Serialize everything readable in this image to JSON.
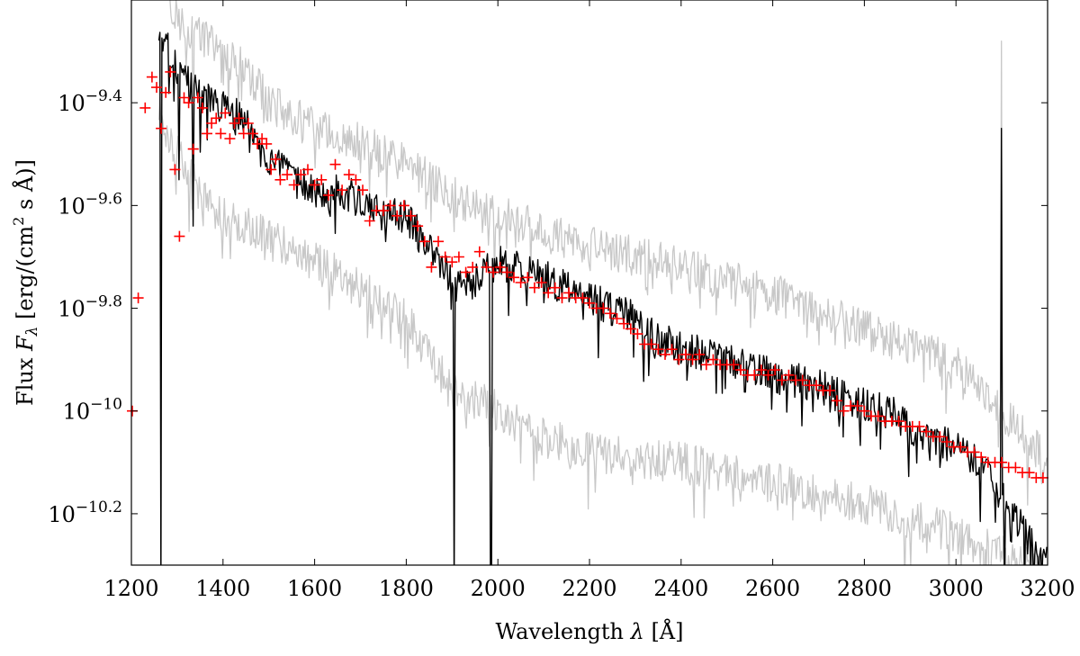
{
  "chart_data": {
    "type": "line",
    "title": "",
    "xlabel": "Wavelength λ [Å]",
    "ylabel": "Flux F_λ [erg/(cm² s Å)]",
    "xlabel_parts": {
      "main": "Wavelength ",
      "symbol": "λ",
      "unit": " [Å]"
    },
    "ylabel_parts": {
      "main": "Flux ",
      "symbol": "F",
      "sub": "λ",
      "unit_a": " [erg/(cm",
      "sup": "2",
      "unit_b": " s Å)]"
    },
    "xlim": [
      1200,
      3200
    ],
    "ylim_log10": [
      -10.3,
      -9.2
    ],
    "y_scale": "log",
    "grid": false,
    "x_ticks": [
      {
        "value": 1200,
        "label": "1200"
      },
      {
        "value": 1400,
        "label": "1400"
      },
      {
        "value": 1600,
        "label": "1600"
      },
      {
        "value": 1800,
        "label": "1800"
      },
      {
        "value": 2000,
        "label": "2000"
      },
      {
        "value": 2200,
        "label": "2200"
      },
      {
        "value": 2400,
        "label": "2400"
      },
      {
        "value": 2600,
        "label": "2600"
      },
      {
        "value": 2800,
        "label": "2800"
      },
      {
        "value": 3000,
        "label": "3000"
      },
      {
        "value": 3200,
        "label": "3200"
      }
    ],
    "y_ticks": [
      {
        "log10": -9.4,
        "base": "10",
        "exp": "−9.4"
      },
      {
        "log10": -9.6,
        "base": "10",
        "exp": "−9.6"
      },
      {
        "log10": -9.8,
        "base": "10",
        "exp": "−9.8"
      },
      {
        "log10": -10.0,
        "base": "10",
        "exp": "−10"
      },
      {
        "log10": -10.2,
        "base": "10",
        "exp": "−10.2"
      }
    ],
    "series": [
      {
        "role": "observed spectrum",
        "color": "#000000",
        "noise_amplitude_log10": 0.035,
        "x": [
          1260,
          1270,
          1280,
          1290,
          1300,
          1320,
          1350,
          1380,
          1400,
          1420,
          1440,
          1450,
          1470,
          1500,
          1550,
          1600,
          1650,
          1700,
          1750,
          1800,
          1850,
          1880,
          1900,
          1950,
          2000,
          2100,
          2200,
          2300,
          2350,
          2400,
          2500,
          2600,
          2700,
          2800,
          2850,
          2900,
          3000,
          3050,
          3080,
          3120,
          3150,
          3200
        ],
        "y_log10": [
          -9.27,
          -9.28,
          -9.3,
          -9.31,
          -9.34,
          -9.36,
          -9.39,
          -9.4,
          -9.41,
          -9.42,
          -9.43,
          -9.44,
          -9.48,
          -9.51,
          -9.55,
          -9.57,
          -9.57,
          -9.59,
          -9.62,
          -9.62,
          -9.69,
          -9.71,
          -9.76,
          -9.75,
          -9.71,
          -9.74,
          -9.78,
          -9.82,
          -9.86,
          -9.88,
          -9.9,
          -9.93,
          -9.95,
          -9.99,
          -10.0,
          -10.03,
          -10.07,
          -10.1,
          -10.14,
          -10.19,
          -10.24,
          -10.3
        ],
        "dips": [
          {
            "x": 1265,
            "y_log10": -10.35
          },
          {
            "x": 1305,
            "y_log10": -9.55
          },
          {
            "x": 1335,
            "y_log10": -9.64
          },
          {
            "x": 1905,
            "y_log10": -10.35
          },
          {
            "x": 1985,
            "y_log10": -10.35
          },
          {
            "x": 3105,
            "y_log10": -10.35
          },
          {
            "x": 3150,
            "y_log10": -10.35
          }
        ],
        "spikes": [
          {
            "x": 3100,
            "y_log10": -9.45
          }
        ]
      },
      {
        "role": "upper envelope",
        "color": "#c8c8c8",
        "noise_amplitude_log10": 0.04,
        "x": [
          1260,
          1280,
          1300,
          1350,
          1400,
          1450,
          1500,
          1600,
          1700,
          1800,
          1900,
          2000,
          2200,
          2400,
          2600,
          2800,
          3000,
          3100,
          3200
        ],
        "y_log10": [
          -9.13,
          -9.18,
          -9.24,
          -9.27,
          -9.3,
          -9.34,
          -9.4,
          -9.45,
          -9.48,
          -9.52,
          -9.58,
          -9.62,
          -9.68,
          -9.72,
          -9.77,
          -9.84,
          -9.91,
          -10.0,
          -10.1
        ],
        "dips": [
          {
            "x": 1335,
            "y_log10": -9.58
          }
        ],
        "spikes": [
          {
            "x": 3100,
            "y_log10": -9.28
          }
        ]
      },
      {
        "role": "lower envelope",
        "color": "#c8c8c8",
        "noise_amplitude_log10": 0.04,
        "x": [
          1260,
          1300,
          1350,
          1400,
          1450,
          1500,
          1600,
          1700,
          1800,
          1900,
          2000,
          2100,
          2200,
          2400,
          2600,
          2800,
          3000,
          3100,
          3200
        ],
        "y_log10": [
          -9.42,
          -9.5,
          -9.58,
          -9.62,
          -9.64,
          -9.66,
          -9.71,
          -9.76,
          -9.82,
          -9.96,
          -10.0,
          -10.05,
          -10.08,
          -10.1,
          -10.14,
          -10.18,
          -10.24,
          -10.28,
          -10.32
        ],
        "dips": [],
        "spikes": []
      },
      {
        "role": "model points",
        "color": "#ff0000",
        "marker": "+",
        "points": [
          [
            1202,
            -10.0
          ],
          [
            1215,
            -9.78
          ],
          [
            1230,
            -9.41
          ],
          [
            1245,
            -9.35
          ],
          [
            1255,
            -9.37
          ],
          [
            1265,
            -9.45
          ],
          [
            1275,
            -9.38
          ],
          [
            1285,
            -9.34
          ],
          [
            1295,
            -9.53
          ],
          [
            1305,
            -9.66
          ],
          [
            1315,
            -9.39
          ],
          [
            1325,
            -9.4
          ],
          [
            1335,
            -9.49
          ],
          [
            1345,
            -9.39
          ],
          [
            1355,
            -9.41
          ],
          [
            1365,
            -9.46
          ],
          [
            1375,
            -9.44
          ],
          [
            1385,
            -9.43
          ],
          [
            1395,
            -9.46
          ],
          [
            1405,
            -9.42
          ],
          [
            1415,
            -9.47
          ],
          [
            1425,
            -9.44
          ],
          [
            1435,
            -9.43
          ],
          [
            1445,
            -9.46
          ],
          [
            1455,
            -9.44
          ],
          [
            1465,
            -9.46
          ],
          [
            1475,
            -9.48
          ],
          [
            1485,
            -9.47
          ],
          [
            1495,
            -9.48
          ],
          [
            1505,
            -9.53
          ],
          [
            1515,
            -9.51
          ],
          [
            1525,
            -9.55
          ],
          [
            1540,
            -9.54
          ],
          [
            1555,
            -9.56
          ],
          [
            1570,
            -9.54
          ],
          [
            1585,
            -9.53
          ],
          [
            1600,
            -9.56
          ],
          [
            1615,
            -9.55
          ],
          [
            1630,
            -9.58
          ],
          [
            1645,
            -9.52
          ],
          [
            1660,
            -9.57
          ],
          [
            1675,
            -9.54
          ],
          [
            1690,
            -9.55
          ],
          [
            1705,
            -9.57
          ],
          [
            1720,
            -9.63
          ],
          [
            1735,
            -9.61
          ],
          [
            1750,
            -9.61
          ],
          [
            1765,
            -9.6
          ],
          [
            1780,
            -9.62
          ],
          [
            1795,
            -9.6
          ],
          [
            1810,
            -9.62
          ],
          [
            1825,
            -9.64
          ],
          [
            1840,
            -9.67
          ],
          [
            1855,
            -9.72
          ],
          [
            1870,
            -9.67
          ],
          [
            1885,
            -9.7
          ],
          [
            1900,
            -9.71
          ],
          [
            1915,
            -9.7
          ],
          [
            1930,
            -9.73
          ],
          [
            1945,
            -9.72
          ],
          [
            1960,
            -9.69
          ],
          [
            1975,
            -9.72
          ],
          [
            1990,
            -9.73
          ],
          [
            2005,
            -9.72
          ],
          [
            2020,
            -9.73
          ],
          [
            2035,
            -9.74
          ],
          [
            2050,
            -9.75
          ],
          [
            2065,
            -9.74
          ],
          [
            2080,
            -9.76
          ],
          [
            2095,
            -9.75
          ],
          [
            2110,
            -9.77
          ],
          [
            2125,
            -9.76
          ],
          [
            2140,
            -9.78
          ],
          [
            2155,
            -9.77
          ],
          [
            2170,
            -9.78
          ],
          [
            2185,
            -9.78
          ],
          [
            2200,
            -9.79
          ],
          [
            2215,
            -9.8
          ],
          [
            2230,
            -9.8
          ],
          [
            2245,
            -9.81
          ],
          [
            2260,
            -9.82
          ],
          [
            2275,
            -9.83
          ],
          [
            2290,
            -9.84
          ],
          [
            2305,
            -9.85
          ],
          [
            2320,
            -9.87
          ],
          [
            2335,
            -9.87
          ],
          [
            2350,
            -9.88
          ],
          [
            2365,
            -9.89
          ],
          [
            2380,
            -9.88
          ],
          [
            2395,
            -9.9
          ],
          [
            2410,
            -9.89
          ],
          [
            2425,
            -9.9
          ],
          [
            2440,
            -9.89
          ],
          [
            2455,
            -9.91
          ],
          [
            2470,
            -9.9
          ],
          [
            2485,
            -9.91
          ],
          [
            2500,
            -9.91
          ],
          [
            2515,
            -9.91
          ],
          [
            2530,
            -9.92
          ],
          [
            2545,
            -9.93
          ],
          [
            2560,
            -9.93
          ],
          [
            2575,
            -9.92
          ],
          [
            2590,
            -9.93
          ],
          [
            2605,
            -9.92
          ],
          [
            2620,
            -9.94
          ],
          [
            2635,
            -9.93
          ],
          [
            2650,
            -9.94
          ],
          [
            2665,
            -9.94
          ],
          [
            2680,
            -9.95
          ],
          [
            2695,
            -9.95
          ],
          [
            2710,
            -9.96
          ],
          [
            2725,
            -9.96
          ],
          [
            2740,
            -9.98
          ],
          [
            2755,
            -10.0
          ],
          [
            2770,
            -9.99
          ],
          [
            2785,
            -9.99
          ],
          [
            2800,
            -10.0
          ],
          [
            2815,
            -10.01
          ],
          [
            2830,
            -10.01
          ],
          [
            2845,
            -10.02
          ],
          [
            2860,
            -10.02
          ],
          [
            2875,
            -10.02
          ],
          [
            2890,
            -10.03
          ],
          [
            2905,
            -10.03
          ],
          [
            2920,
            -10.03
          ],
          [
            2935,
            -10.04
          ],
          [
            2950,
            -10.05
          ],
          [
            2965,
            -10.05
          ],
          [
            2980,
            -10.06
          ],
          [
            2995,
            -10.07
          ],
          [
            3010,
            -10.07
          ],
          [
            3025,
            -10.08
          ],
          [
            3040,
            -10.08
          ],
          [
            3055,
            -10.09
          ],
          [
            3070,
            -10.1
          ],
          [
            3085,
            -10.1
          ],
          [
            3100,
            -10.1
          ],
          [
            3115,
            -10.11
          ],
          [
            3130,
            -10.11
          ],
          [
            3145,
            -10.12
          ],
          [
            3160,
            -10.12
          ],
          [
            3175,
            -10.13
          ],
          [
            3190,
            -10.13
          ]
        ]
      }
    ]
  }
}
